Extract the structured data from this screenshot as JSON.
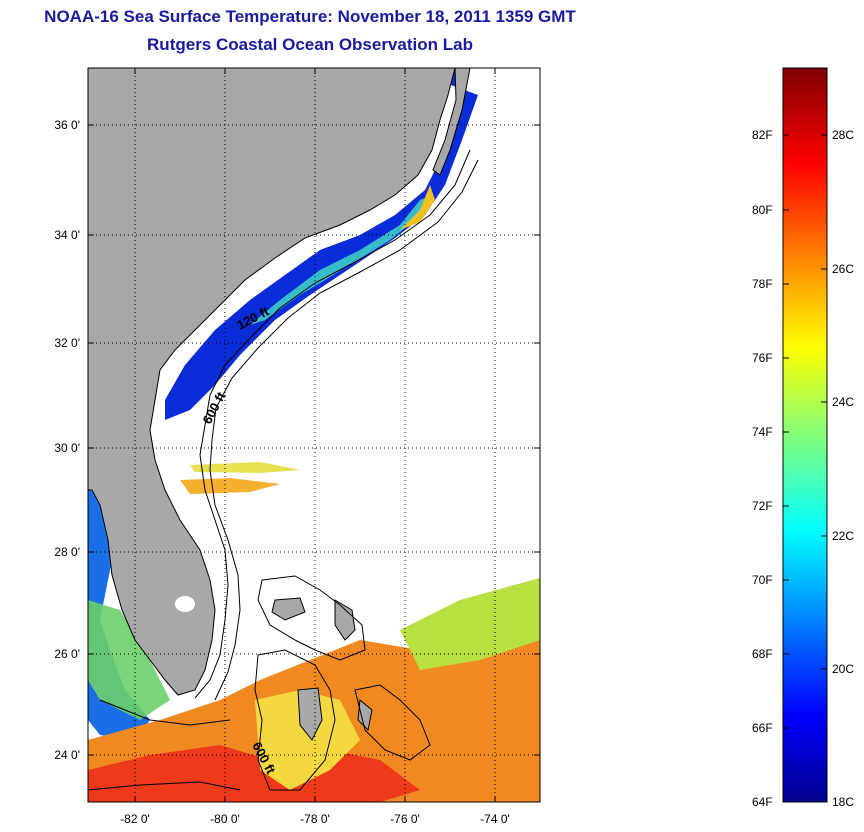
{
  "title_line1": "NOAA-16 Sea Surface Temperature:  November 18, 2011 1359 GMT",
  "title_line2": "Rutgers Coastal Ocean Observation Lab",
  "map": {
    "lat_range": [
      23.0,
      37.0
    ],
    "lon_range": [
      -83.0,
      -73.0
    ],
    "lat_ticks": [
      "36 0'",
      "34 0'",
      "32 0'",
      "30 0'",
      "28 0'",
      "26 0'",
      "24 0'"
    ],
    "lon_ticks": [
      "-82 0'",
      "-80 0'",
      "-78 0'",
      "-76 0'",
      "-74 0'"
    ],
    "contour_labels": [
      "120 ft",
      "600 ft",
      "600 ft"
    ],
    "land_color": "#a8a8a8",
    "grid": true
  },
  "colorbar": {
    "fahrenheit_labels": [
      "82F",
      "80F",
      "78F",
      "76F",
      "74F",
      "72F",
      "70F",
      "68F",
      "66F",
      "64F"
    ],
    "celsius_labels": [
      "28C",
      "26C",
      "24C",
      "22C",
      "20C",
      "18C"
    ],
    "range_c": [
      18,
      29.3
    ],
    "colormap": "jet"
  }
}
